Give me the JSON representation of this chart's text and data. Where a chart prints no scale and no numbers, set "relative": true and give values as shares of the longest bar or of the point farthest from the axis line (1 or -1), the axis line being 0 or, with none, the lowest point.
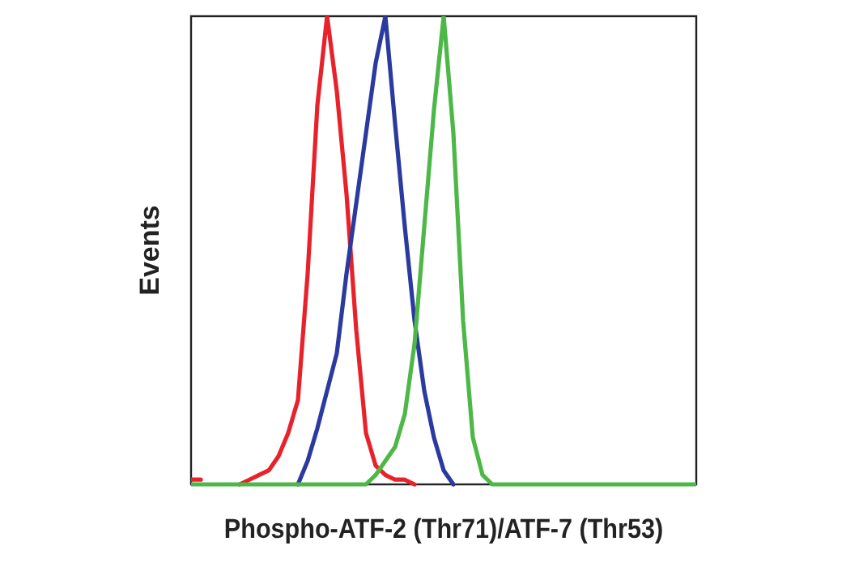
{
  "chart_data": {
    "type": "line",
    "xlabel": "Phospho-ATF-2 (Thr71)/ATF-7 (Thr53)",
    "ylabel": "Events",
    "relative": true,
    "categories": [
      null,
      null,
      null,
      null,
      null,
      null,
      null,
      null,
      null,
      null,
      null,
      null,
      null,
      null,
      null,
      null,
      null,
      null,
      null,
      null,
      null,
      null,
      null,
      null,
      null,
      null,
      null,
      null,
      null,
      null,
      null,
      null,
      null,
      null,
      null,
      null,
      null,
      null,
      null,
      null,
      null,
      null,
      null,
      null,
      null,
      null,
      null,
      null,
      null,
      null,
      null,
      null,
      null
    ],
    "series": [
      {
        "color": "#e8222b",
        "values": [
          0.01,
          0.01,
          null,
          null,
          null,
          0,
          0.01,
          0.02,
          0.03,
          0.06,
          0.11,
          0.18,
          0.45,
          0.81,
          1,
          0.84,
          0.62,
          0.33,
          0.11,
          0.04,
          0.02,
          0.01,
          0.01,
          0,
          null,
          null,
          null,
          null,
          null,
          null,
          null,
          null,
          null,
          null,
          null,
          null,
          null,
          null,
          null,
          null,
          null,
          null,
          null,
          null,
          null,
          null,
          null,
          null,
          null,
          null,
          null,
          null,
          null
        ]
      },
      {
        "color": "#2b3a9e",
        "values": [
          null,
          null,
          null,
          null,
          null,
          null,
          null,
          null,
          null,
          null,
          null,
          0,
          0.05,
          0.12,
          0.2,
          0.28,
          0.45,
          0.6,
          0.75,
          0.9,
          1,
          0.77,
          0.55,
          0.35,
          0.2,
          0.1,
          0.03,
          0,
          null,
          null,
          null,
          null,
          null,
          null,
          null,
          null,
          null,
          null,
          null,
          null,
          null,
          null,
          null,
          null,
          null,
          null,
          null,
          null,
          null,
          null,
          null,
          null,
          null
        ]
      },
      {
        "color": "#4db848",
        "values": [
          0,
          0,
          0,
          0,
          0,
          0,
          0,
          0,
          0,
          0,
          0,
          0,
          0,
          0,
          0,
          0,
          0,
          0,
          0,
          0.02,
          0.05,
          0.08,
          0.15,
          0.3,
          0.55,
          0.8,
          1,
          0.75,
          0.35,
          0.1,
          0.02,
          0,
          0,
          0,
          0,
          0,
          0,
          0,
          0,
          0,
          0,
          0,
          0,
          0,
          0,
          0,
          0,
          0,
          0,
          0,
          0,
          0,
          0
        ]
      }
    ]
  }
}
